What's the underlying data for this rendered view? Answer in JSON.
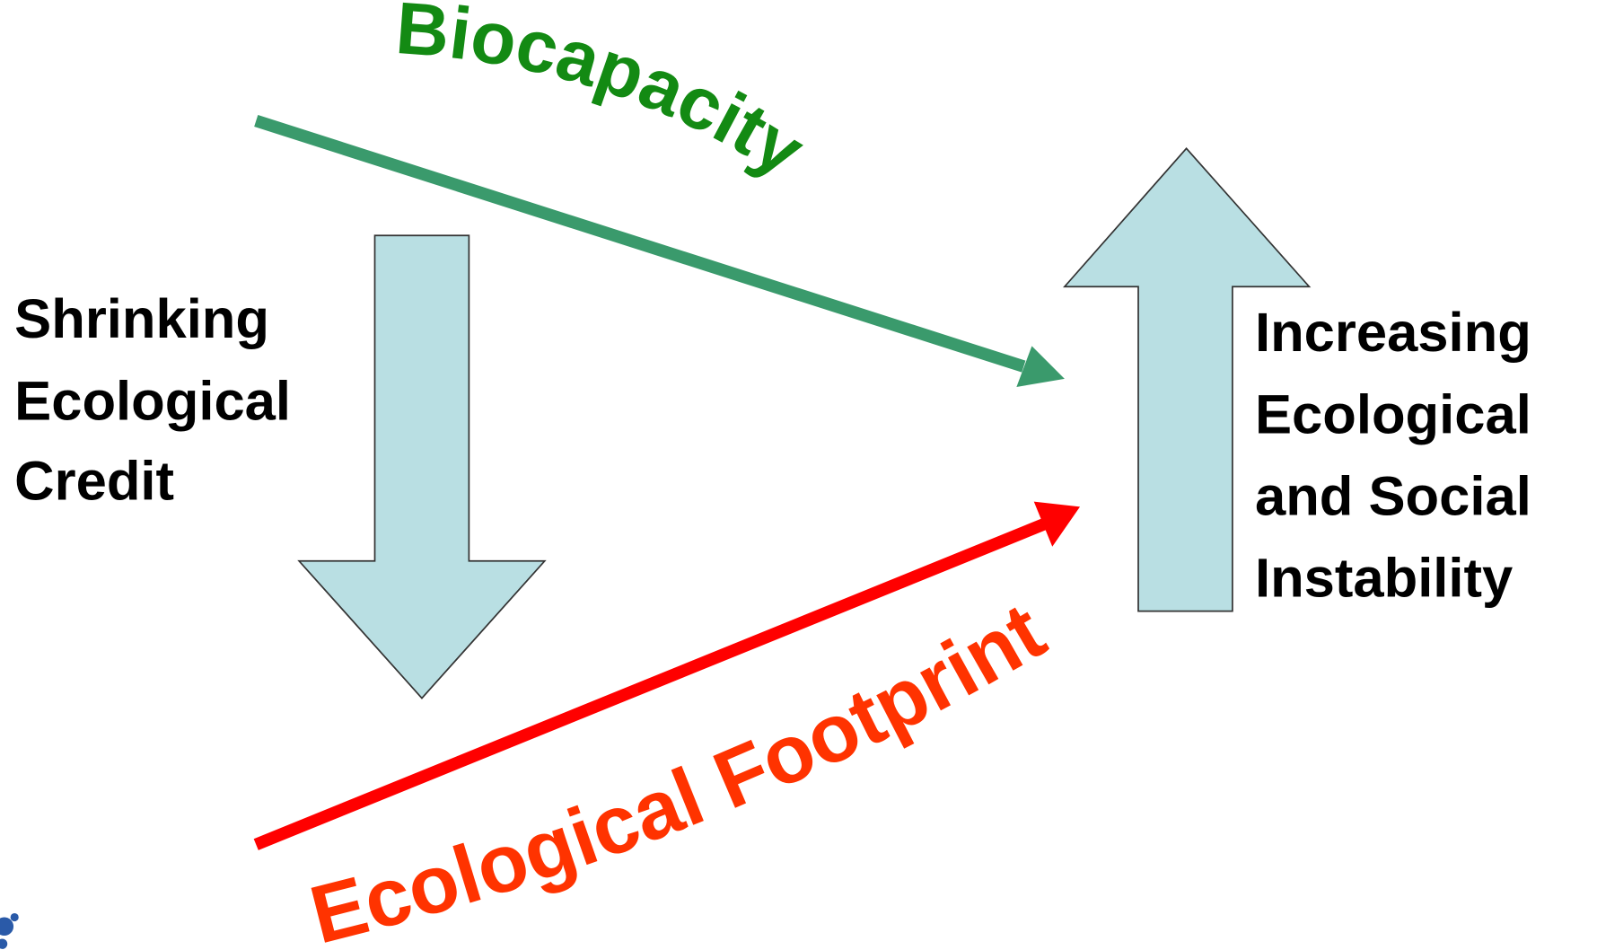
{
  "biocapacity": "Biocapacity",
  "footprint": "Ecological Footprint",
  "left_text": [
    "Shrinking",
    "Ecological",
    "Credit"
  ],
  "right_text": [
    "Increasing",
    "Ecological",
    "and Social",
    "Instability"
  ]
}
